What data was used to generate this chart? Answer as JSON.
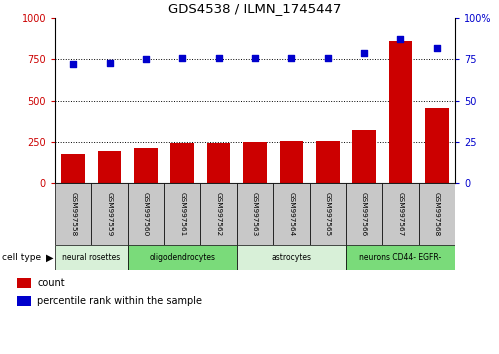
{
  "title": "GDS4538 / ILMN_1745447",
  "samples": [
    "GSM997558",
    "GSM997559",
    "GSM997560",
    "GSM997561",
    "GSM997562",
    "GSM997563",
    "GSM997564",
    "GSM997565",
    "GSM997566",
    "GSM997567",
    "GSM997568"
  ],
  "counts": [
    175,
    195,
    215,
    245,
    245,
    250,
    255,
    255,
    320,
    860,
    455
  ],
  "percentile_ranks": [
    72,
    73,
    75,
    76,
    76,
    76,
    76,
    76,
    79,
    87,
    82
  ],
  "cell_types": [
    {
      "label": "neural rosettes",
      "start": 0,
      "end": 2,
      "color": "#d8f0d8"
    },
    {
      "label": "oligodendrocytes",
      "start": 2,
      "end": 5,
      "color": "#7adb7a"
    },
    {
      "label": "astrocytes",
      "start": 5,
      "end": 8,
      "color": "#d8f0d8"
    },
    {
      "label": "neurons CD44- EGFR-",
      "start": 8,
      "end": 11,
      "color": "#7adb7a"
    }
  ],
  "bar_color": "#cc0000",
  "dot_color": "#0000cc",
  "left_ylim": [
    0,
    1000
  ],
  "right_ylim": [
    0,
    100
  ],
  "left_yticks": [
    0,
    250,
    500,
    750,
    1000
  ],
  "right_yticks": [
    0,
    25,
    50,
    75,
    100
  ],
  "tick_label_color_left": "#cc0000",
  "tick_label_color_right": "#0000cc",
  "grid_color": "black",
  "cell_type_label": "cell type",
  "legend_count": "count",
  "legend_percentile": "percentile rank within the sample",
  "bg_color": "white",
  "plot_bg_color": "white",
  "sample_box_color": "#c8c8c8"
}
